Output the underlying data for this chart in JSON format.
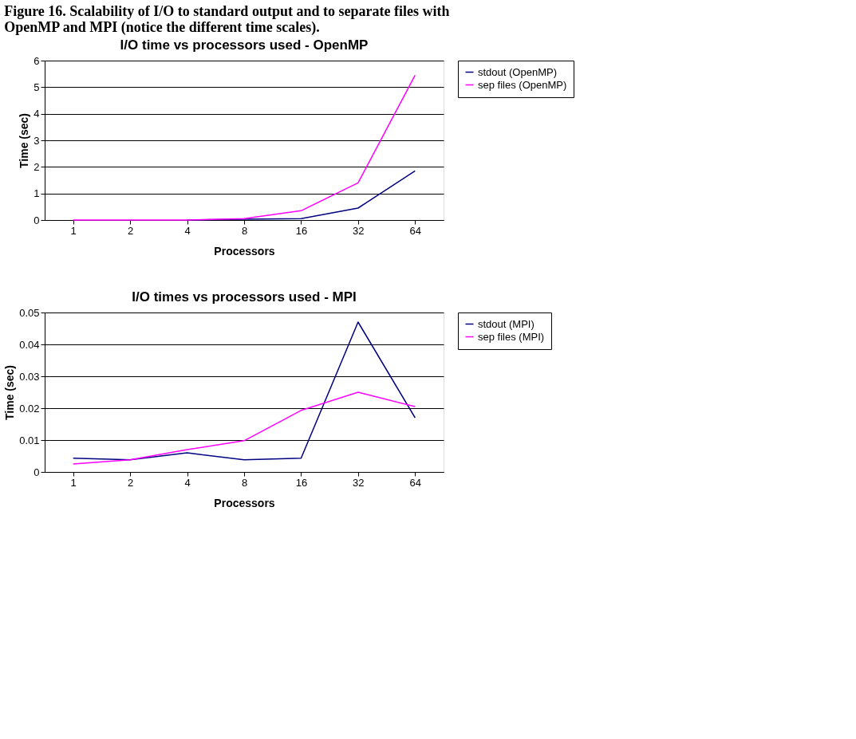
{
  "chart_data": [
    {
      "type": "line",
      "title": "I/O time vs processors used - OpenMP",
      "xlabel": "Processors",
      "ylabel": "Time (sec)",
      "annotations": [
        "Figure 16.  Scalability of I/O to standard output and to separate files with OpenMP and MPI (notice the different time scales)."
      ],
      "categories": [
        "1",
        "2",
        "4",
        "8",
        "16",
        "32",
        "64"
      ],
      "ylim": [
        0,
        6
      ],
      "yticks": [
        0,
        1,
        2,
        3,
        4,
        5,
        6
      ],
      "grid": "y",
      "legend": "right",
      "marker": "none",
      "line_style": "solid",
      "series": [
        {
          "name": "stdout (OpenMP)",
          "color": "#000080",
          "values": [
            null,
            null,
            0,
            0.03,
            0.05,
            0.45,
            1.85
          ]
        },
        {
          "name": "sep files (OpenMP)",
          "color": "#ff00ff",
          "values": [
            0,
            0,
            0,
            0.05,
            0.35,
            1.4,
            5.45
          ]
        }
      ]
    },
    {
      "type": "line",
      "title": "I/O times vs processors used - MPI",
      "xlabel": "Processors",
      "ylabel": "Time (sec)",
      "categories": [
        "1",
        "2",
        "4",
        "8",
        "16",
        "32",
        "64"
      ],
      "ylim": [
        0,
        0.05
      ],
      "yticks": [
        0,
        {
          "value": 0.01,
          "label": "0.01"
        },
        {
          "value": 0.02,
          "label": "0.02"
        },
        {
          "value": 0.03,
          "label": "0.03"
        },
        {
          "value": 0.04,
          "label": "0.04"
        },
        {
          "value": 0.05,
          "label": "0.05"
        }
      ],
      "grid": "y",
      "legend": "right",
      "marker": "none",
      "line_style": "solid",
      "series": [
        {
          "name": "stdout (MPI)",
          "color": "#000080",
          "values": [
            0.0043,
            0.0038,
            0.006,
            0.0038,
            0.0043,
            0.047,
            0.017
          ]
        },
        {
          "name": "sep files (MPI)",
          "color": "#ff00ff",
          "values": [
            0.0025,
            0.0038,
            0.007,
            0.0098,
            0.0193,
            0.025,
            0.0205
          ]
        }
      ]
    }
  ]
}
